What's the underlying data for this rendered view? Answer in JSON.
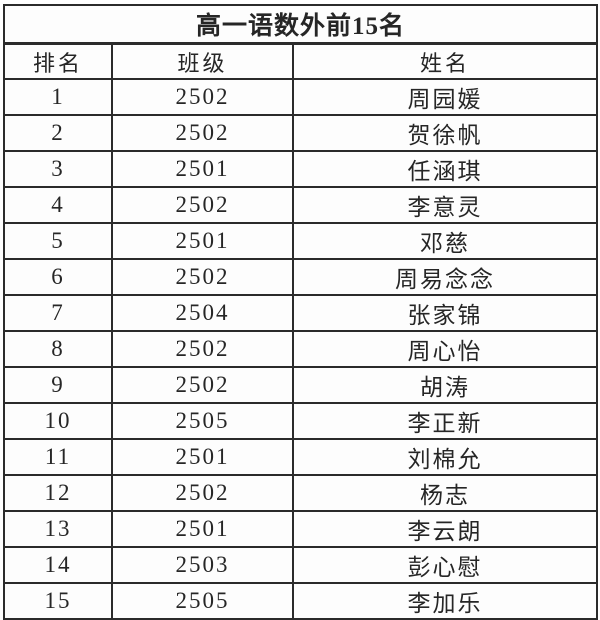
{
  "table": {
    "title": "高一语数外前15名",
    "columns": [
      {
        "key": "rank",
        "label": "排名"
      },
      {
        "key": "class",
        "label": "班级"
      },
      {
        "key": "name",
        "label": "姓名"
      }
    ],
    "rows": [
      [
        "1",
        "2502",
        "周园媛"
      ],
      [
        "2",
        "2502",
        "贺徐帆"
      ],
      [
        "3",
        "2501",
        "任涵琪"
      ],
      [
        "4",
        "2502",
        "李意灵"
      ],
      [
        "5",
        "2501",
        "邓慈"
      ],
      [
        "6",
        "2502",
        "周易念念"
      ],
      [
        "7",
        "2504",
        "张家锦"
      ],
      [
        "8",
        "2502",
        "周心怡"
      ],
      [
        "9",
        "2502",
        "胡涛"
      ],
      [
        "10",
        "2505",
        "李正新"
      ],
      [
        "11",
        "2501",
        "刘棉允"
      ],
      [
        "12",
        "2502",
        "杨志"
      ],
      [
        "13",
        "2501",
        "李云朗"
      ],
      [
        "14",
        "2503",
        "彭心慰"
      ],
      [
        "15",
        "2505",
        "李加乐"
      ]
    ],
    "colors": {
      "border": "#2b2b2b",
      "text": "#262626",
      "background": "#ffffff"
    }
  }
}
